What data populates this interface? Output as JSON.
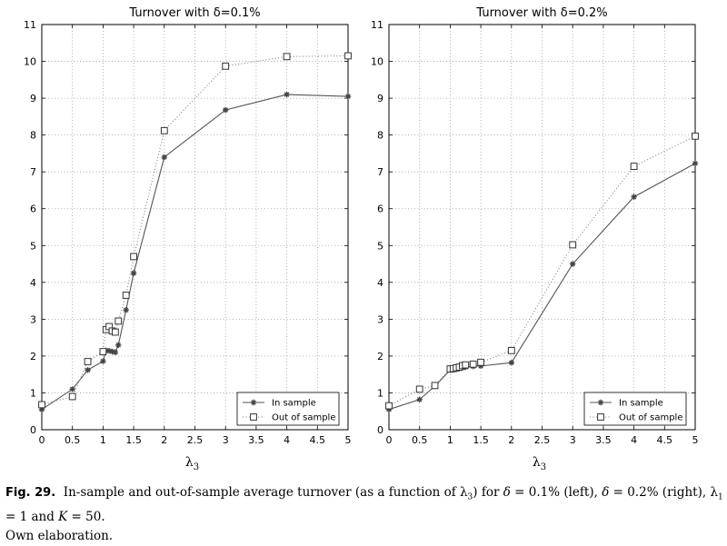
{
  "chart_data": [
    {
      "type": "line",
      "title": "Turnover with δ=0.1%",
      "xlabel": "λ3",
      "ylabel": "",
      "xlim": [
        0,
        5
      ],
      "ylim": [
        0,
        11
      ],
      "xticks": [
        "0",
        "0.5",
        "1",
        "1.5",
        "2",
        "2.5",
        "3",
        "3.5",
        "4",
        "4.5",
        "5"
      ],
      "yticks": [
        "0",
        "1",
        "2",
        "3",
        "4",
        "5",
        "6",
        "7",
        "8",
        "9",
        "10",
        "11"
      ],
      "grid": true,
      "legend_position": "bottom-right",
      "series": [
        {
          "name": "In sample",
          "marker": "star",
          "line_style": "solid",
          "x": [
            0,
            0.5,
            0.75,
            1.0,
            1.05,
            1.1,
            1.15,
            1.2,
            1.25,
            1.375,
            1.5,
            2,
            3,
            4,
            5
          ],
          "y": [
            0.55,
            1.1,
            1.62,
            1.86,
            2.15,
            2.14,
            2.12,
            2.1,
            2.3,
            3.25,
            4.25,
            7.4,
            8.68,
            9.1,
            9.05
          ]
        },
        {
          "name": "Out of sample",
          "marker": "square",
          "line_style": "dotted",
          "x": [
            0,
            0.5,
            0.75,
            1.0,
            1.05,
            1.1,
            1.15,
            1.2,
            1.25,
            1.375,
            1.5,
            2,
            3,
            4,
            5
          ],
          "y": [
            0.68,
            0.9,
            1.85,
            2.12,
            2.72,
            2.8,
            2.68,
            2.65,
            2.95,
            3.65,
            4.7,
            8.12,
            9.87,
            10.13,
            10.15
          ]
        }
      ]
    },
    {
      "type": "line",
      "title": "Turnover with δ=0.2%",
      "xlabel": "λ3",
      "ylabel": "",
      "xlim": [
        0,
        5
      ],
      "ylim": [
        0,
        11
      ],
      "xticks": [
        "0",
        "0.5",
        "1",
        "1.5",
        "2",
        "2.5",
        "3",
        "3.5",
        "4",
        "4.5",
        "5"
      ],
      "yticks": [
        "0",
        "1",
        "2",
        "3",
        "4",
        "5",
        "6",
        "7",
        "8",
        "9",
        "10",
        "11"
      ],
      "grid": true,
      "legend_position": "bottom-right",
      "series": [
        {
          "name": "In sample",
          "marker": "star",
          "line_style": "solid",
          "x": [
            0,
            0.5,
            0.75,
            1.0,
            1.05,
            1.1,
            1.15,
            1.2,
            1.25,
            1.375,
            1.5,
            2,
            3,
            4,
            5
          ],
          "y": [
            0.55,
            0.82,
            1.18,
            1.62,
            1.63,
            1.65,
            1.66,
            1.68,
            1.7,
            1.72,
            1.73,
            1.82,
            4.5,
            6.32,
            7.23
          ]
        },
        {
          "name": "Out of sample",
          "marker": "square",
          "line_style": "dotted",
          "x": [
            0,
            0.5,
            0.75,
            1.0,
            1.05,
            1.1,
            1.15,
            1.2,
            1.25,
            1.375,
            1.5,
            2,
            3,
            4,
            5
          ],
          "y": [
            0.65,
            1.1,
            1.2,
            1.65,
            1.66,
            1.68,
            1.7,
            1.74,
            1.76,
            1.78,
            1.83,
            2.15,
            5.02,
            7.15,
            7.97
          ]
        }
      ]
    }
  ],
  "caption": {
    "label": "Fig. 29.",
    "line1": "In-sample and out-of-sample average turnover (as a function of λ3) for δ = 0.1% (left), δ = 0.2% (right), λ1 = 1 and K = 50.",
    "line2": "Own elaboration."
  },
  "colors": {
    "in_sample_line": "#555555",
    "out_of_sample_line": "#888888",
    "grid": "#9a9a9a",
    "axes": "#000000"
  }
}
